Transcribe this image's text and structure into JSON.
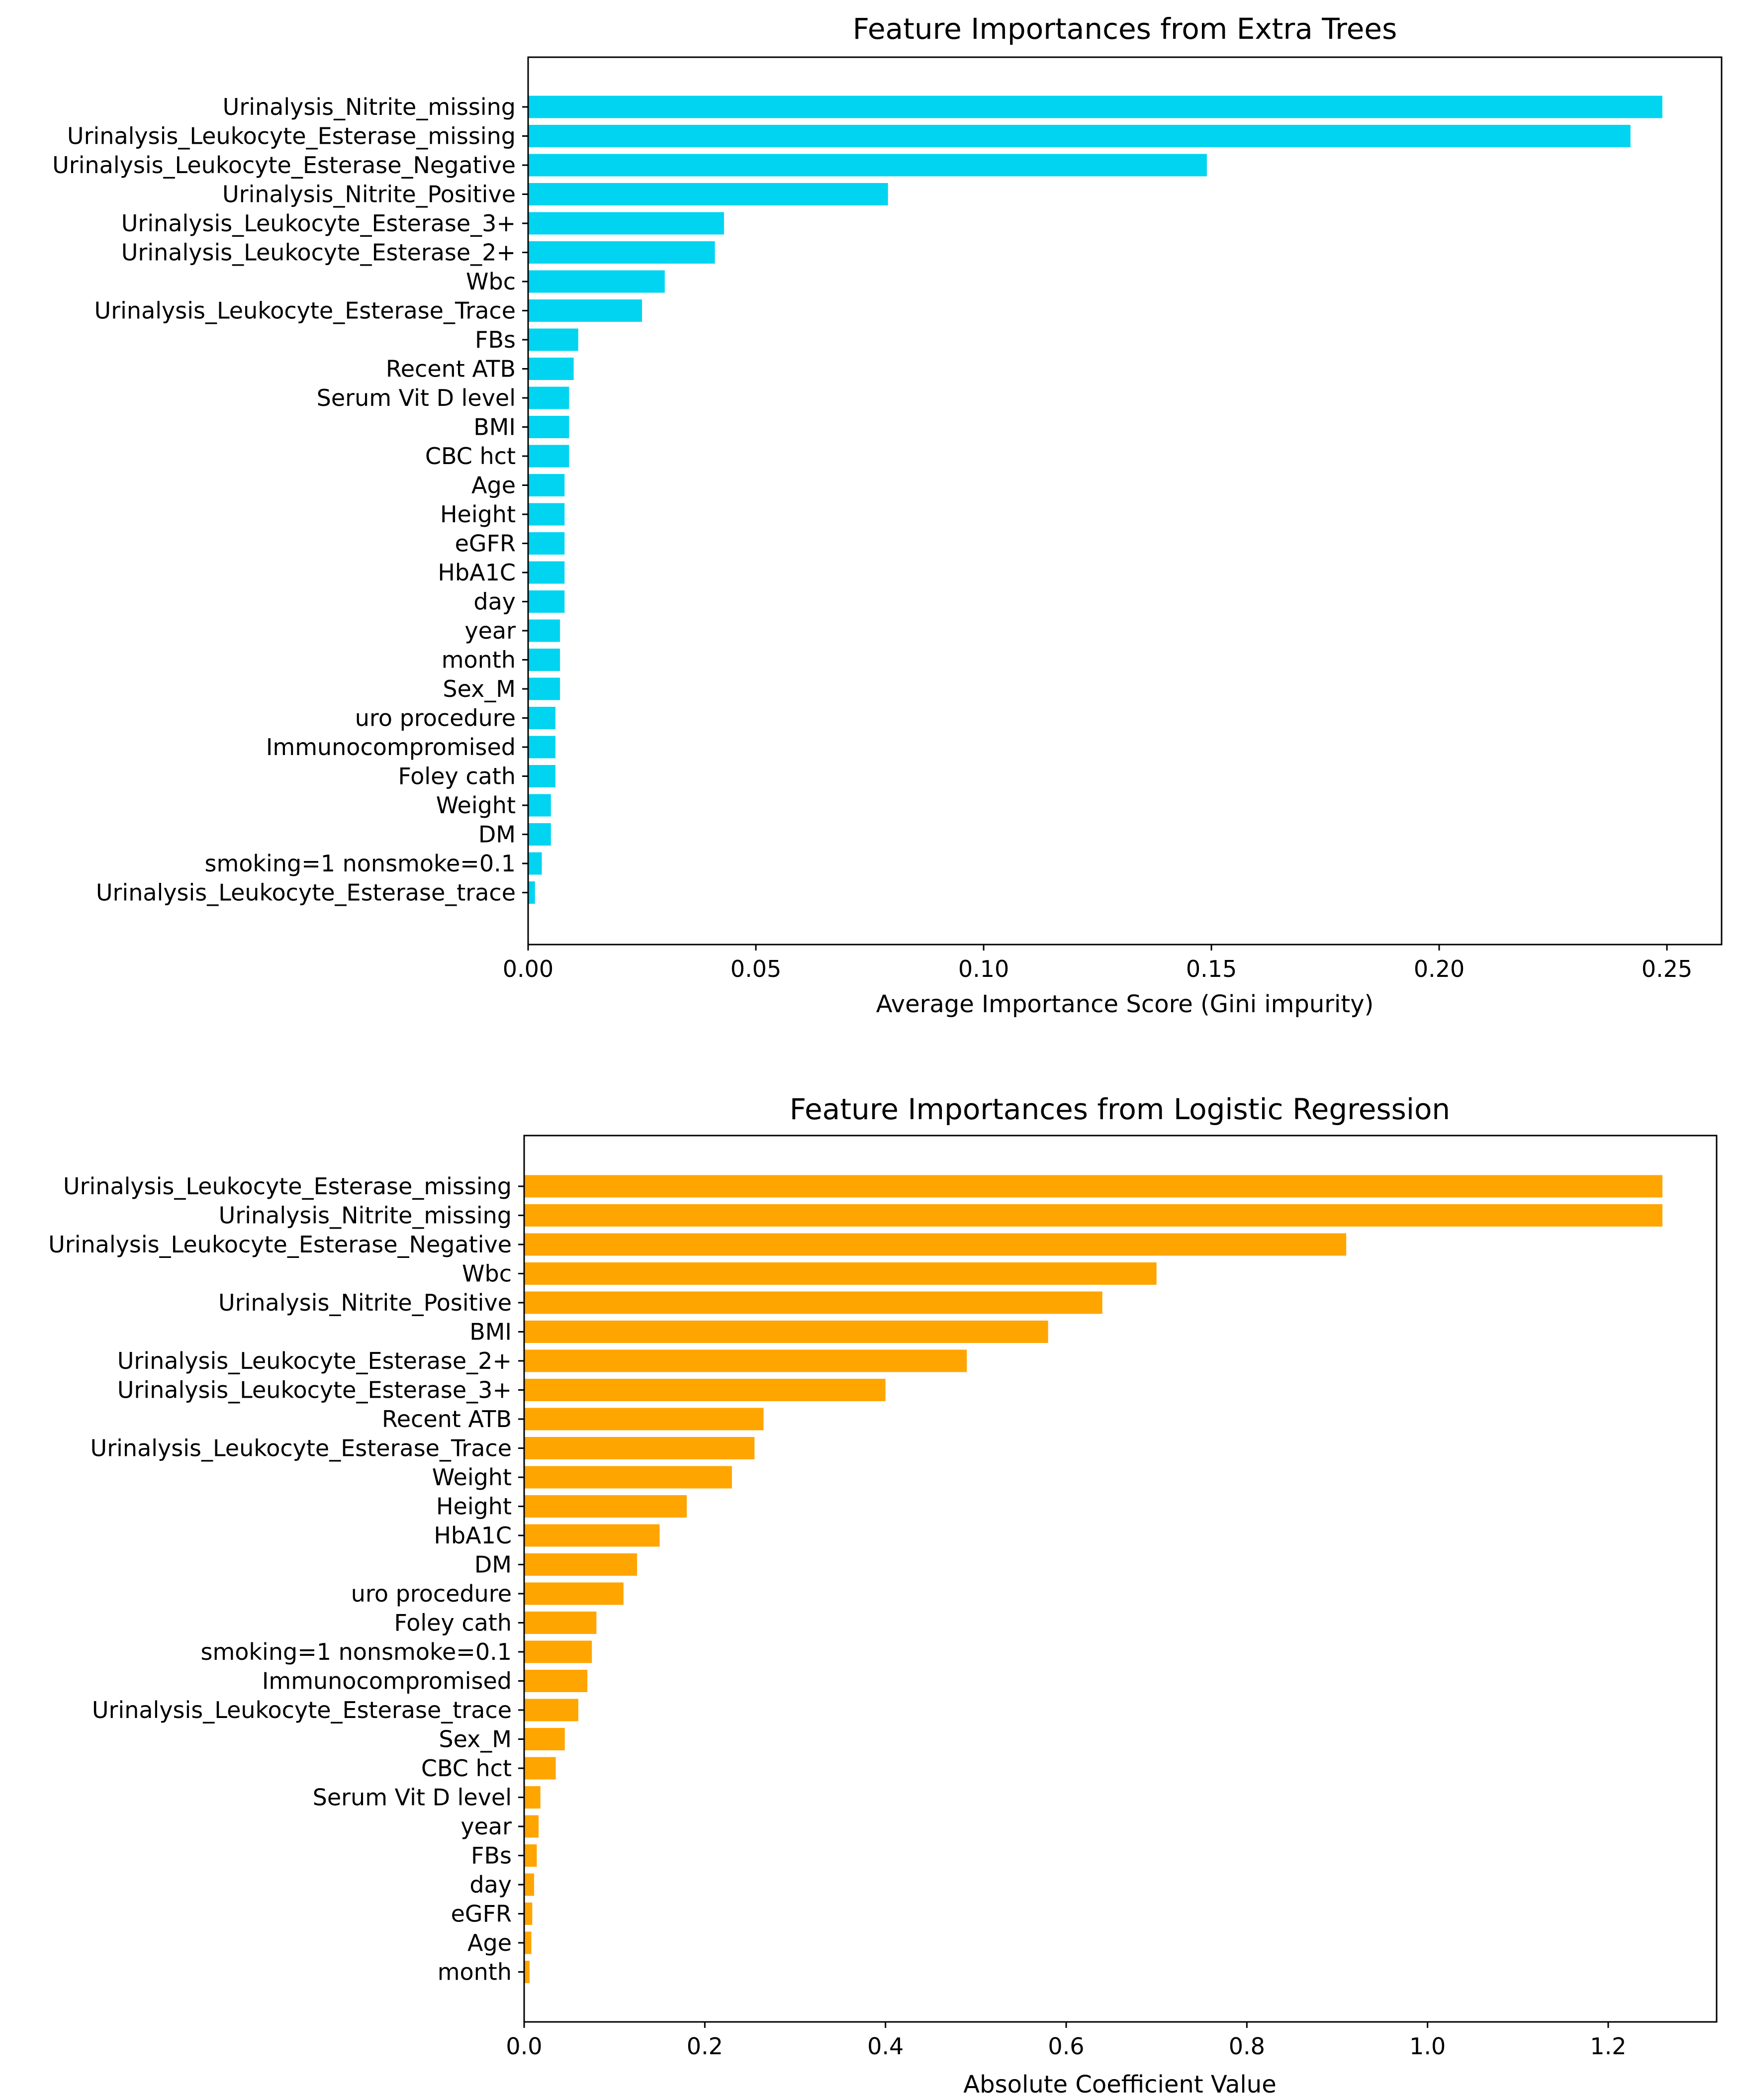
{
  "chart_data": [
    {
      "type": "bar",
      "orientation": "horizontal",
      "title": "Feature Importances from Extra Trees",
      "xlabel": "Average Importance Score (Gini impurity)",
      "ylabel": "",
      "xlim": [
        0,
        0.262
      ],
      "xticks": [
        0.0,
        0.05,
        0.1,
        0.15,
        0.2,
        0.25
      ],
      "xtick_labels": [
        "0.00",
        "0.05",
        "0.10",
        "0.15",
        "0.20",
        "0.25"
      ],
      "grid": false,
      "bar_color": "#00d4f0",
      "categories": [
        "Urinalysis_Nitrite_missing",
        "Urinalysis_Leukocyte_Esterase_missing",
        "Urinalysis_Leukocyte_Esterase_Negative",
        "Urinalysis_Nitrite_Positive",
        "Urinalysis_Leukocyte_Esterase_3+",
        "Urinalysis_Leukocyte_Esterase_2+",
        "Wbc",
        "Urinalysis_Leukocyte_Esterase_Trace",
        "FBs",
        "Recent ATB",
        "Serum Vit D level",
        "BMI",
        "CBC hct",
        "Age",
        "Height",
        "eGFR",
        "HbA1C",
        "day",
        "year",
        "month",
        "Sex_M",
        "uro procedure",
        "Immunocompromised",
        "Foley cath",
        "Weight",
        "DM",
        "smoking=1  nonsmoke=0.1",
        "Urinalysis_Leukocyte_Esterase_trace"
      ],
      "values": [
        0.249,
        0.242,
        0.149,
        0.079,
        0.043,
        0.041,
        0.03,
        0.025,
        0.011,
        0.01,
        0.009,
        0.009,
        0.009,
        0.008,
        0.008,
        0.008,
        0.008,
        0.008,
        0.007,
        0.007,
        0.007,
        0.006,
        0.006,
        0.006,
        0.005,
        0.005,
        0.003,
        0.0015
      ]
    },
    {
      "type": "bar",
      "orientation": "horizontal",
      "title": "Feature Importances from Logistic Regression",
      "xlabel": "Absolute Coefficient Value",
      "ylabel": "",
      "xlim": [
        0,
        1.32
      ],
      "xticks": [
        0.0,
        0.2,
        0.4,
        0.6,
        0.8,
        1.0,
        1.2
      ],
      "xtick_labels": [
        "0.0",
        "0.2",
        "0.4",
        "0.6",
        "0.8",
        "1.0",
        "1.2"
      ],
      "grid": false,
      "bar_color": "#ffa500",
      "categories": [
        "Urinalysis_Leukocyte_Esterase_missing",
        "Urinalysis_Nitrite_missing",
        "Urinalysis_Leukocyte_Esterase_Negative",
        "Wbc",
        "Urinalysis_Nitrite_Positive",
        "BMI",
        "Urinalysis_Leukocyte_Esterase_2+",
        "Urinalysis_Leukocyte_Esterase_3+",
        "Recent ATB",
        "Urinalysis_Leukocyte_Esterase_Trace",
        "Weight",
        "Height",
        "HbA1C",
        "DM",
        "uro procedure",
        "Foley cath",
        "smoking=1  nonsmoke=0.1",
        "Immunocompromised",
        "Urinalysis_Leukocyte_Esterase_trace",
        "Sex_M",
        "CBC hct",
        "Serum Vit D level",
        "year",
        "FBs",
        "day",
        "eGFR",
        "Age",
        "month"
      ],
      "values": [
        1.26,
        1.26,
        0.91,
        0.7,
        0.64,
        0.58,
        0.49,
        0.4,
        0.265,
        0.255,
        0.23,
        0.18,
        0.15,
        0.125,
        0.11,
        0.08,
        0.075,
        0.07,
        0.06,
        0.045,
        0.035,
        0.018,
        0.016,
        0.014,
        0.011,
        0.009,
        0.008,
        0.006
      ]
    }
  ]
}
